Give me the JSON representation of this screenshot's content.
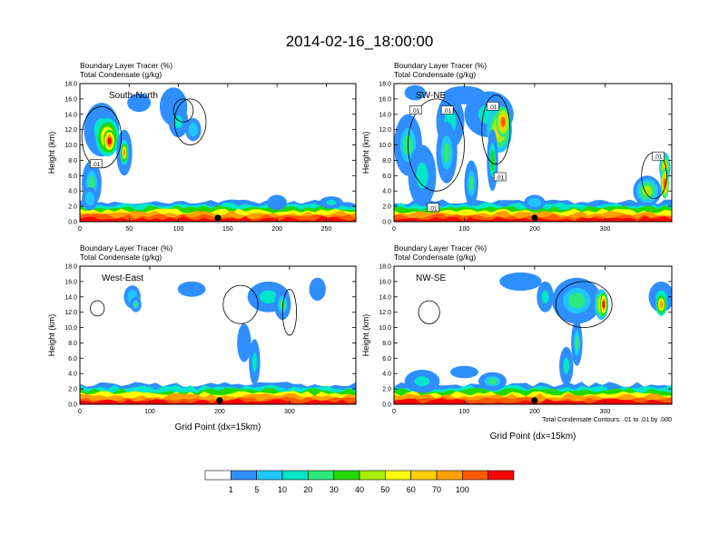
{
  "title": "2014-02-16_18:00:00",
  "panel_titles": {
    "line1": "Boundary Layer Tracer   (%)",
    "line2": "Total Condensate   (g/kg)"
  },
  "ylabel": "Height (km)",
  "xlabel": "Grid Point (dx=15km)",
  "contour_note": "Total Condensate Contours: .01 to .01 by .000",
  "colors": {
    "bins": [
      "#ffffff",
      "#2f8fff",
      "#1ec8ff",
      "#00e6c8",
      "#2ee87a",
      "#22d800",
      "#a8f000",
      "#ffff00",
      "#ffd000",
      "#ffa000",
      "#ff5a00",
      "#ff0000"
    ]
  },
  "colorbar": {
    "labels": [
      "1",
      "5",
      "10",
      "20",
      "30",
      "40",
      "50",
      "60",
      "70",
      "100"
    ]
  },
  "chart_data": [
    {
      "type": "heatmap",
      "name": "South-North",
      "title": "South-North",
      "xlim": [
        0,
        280
      ],
      "ylim": [
        0,
        18
      ],
      "xticks": [
        0,
        50,
        100,
        150,
        200,
        250
      ],
      "yticks": [
        0.0,
        2.0,
        4.0,
        6.0,
        8.0,
        10.0,
        12.0,
        14.0,
        16.0,
        18.0
      ],
      "marker_x": 140,
      "contour_labels": [
        {
          "text": ".01",
          "x": 16,
          "y": 7.5
        }
      ]
    },
    {
      "type": "heatmap",
      "name": "SW-NE",
      "title": "SW-NE",
      "xlim": [
        0,
        395
      ],
      "ylim": [
        0,
        18
      ],
      "xticks": [
        0,
        100,
        200,
        300
      ],
      "yticks": [
        0.0,
        2.0,
        4.0,
        6.0,
        8.0,
        10.0,
        12.0,
        14.0,
        16.0,
        18.0
      ],
      "marker_x": 200,
      "contour_labels": [
        {
          "text": ".01",
          "x": 30,
          "y": 14.5
        },
        {
          "text": ".01",
          "x": 75,
          "y": 14.5
        },
        {
          "text": ".01",
          "x": 140,
          "y": 15.0
        },
        {
          "text": ".01",
          "x": 150,
          "y": 5.8
        },
        {
          "text": ".01",
          "x": 55,
          "y": 1.8
        },
        {
          "text": ".01",
          "x": 375,
          "y": 8.5
        }
      ]
    },
    {
      "type": "heatmap",
      "name": "West-East",
      "title": "West-East",
      "xlim": [
        0,
        395
      ],
      "ylim": [
        0,
        18
      ],
      "xticks": [
        0,
        100,
        200,
        300
      ],
      "yticks": [
        0.0,
        2.0,
        4.0,
        6.0,
        8.0,
        10.0,
        12.0,
        14.0,
        16.0,
        18.0
      ],
      "marker_x": 200,
      "contour_labels": []
    },
    {
      "type": "heatmap",
      "name": "NW-SE",
      "title": "NW-SE",
      "xlim": [
        0,
        395
      ],
      "ylim": [
        0,
        18
      ],
      "xticks": [
        0,
        100,
        200,
        300
      ],
      "yticks": [
        0.0,
        2.0,
        4.0,
        6.0,
        8.0,
        10.0,
        12.0,
        14.0,
        16.0,
        18.0
      ],
      "marker_x": 200,
      "contour_labels": []
    }
  ]
}
